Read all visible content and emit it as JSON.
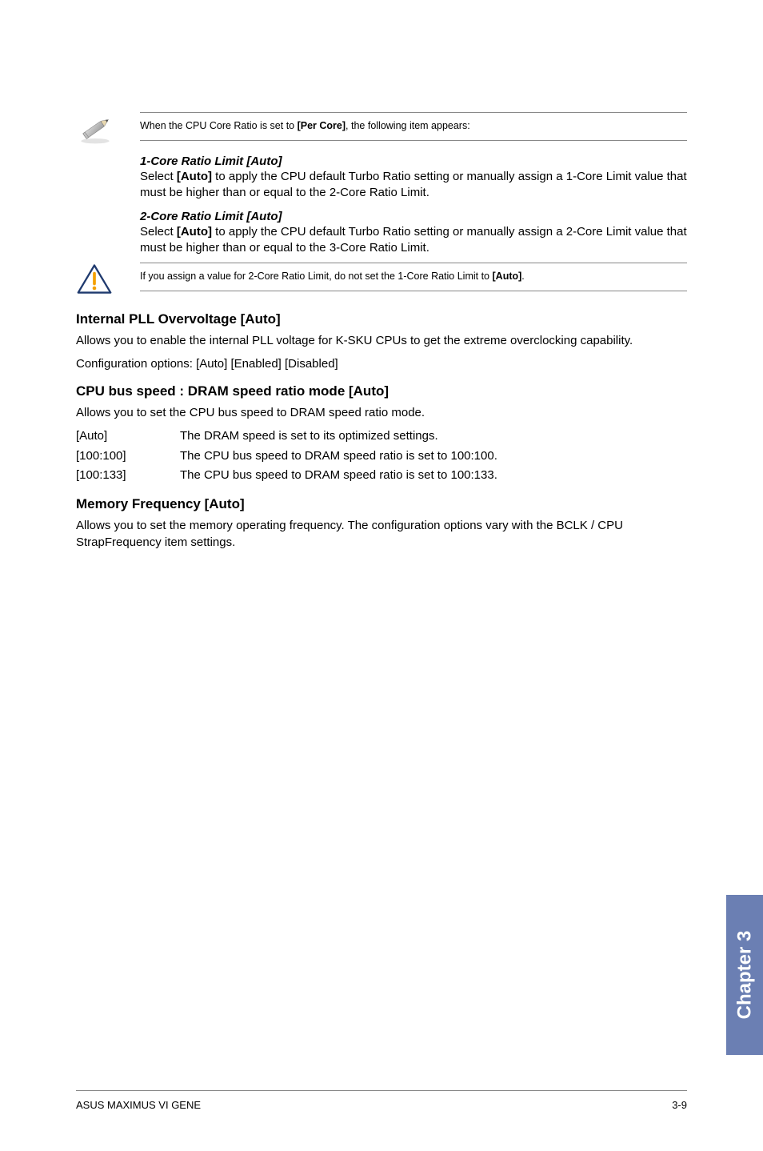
{
  "notes": {
    "pencil_note": "When the CPU Core Ratio is set to <b>[Per Core]</b>, the following item appears:",
    "warn_note": "If you assign a value for 2-Core Ratio Limit, do not set the 1-Core Ratio Limit to <b>[Auto]</b>."
  },
  "ratio_limits": [
    {
      "title": "1-Core Ratio Limit [Auto]",
      "body": "Select <b>[Auto]</b> to apply the CPU default Turbo Ratio setting or manually assign a 1-Core Limit value that must be higher than or equal to the 2-Core Ratio Limit."
    },
    {
      "title": "2-Core Ratio Limit [Auto]",
      "body": "Select <b>[Auto]</b> to apply the CPU default Turbo Ratio setting or manually assign a 2-Core Limit value that must be higher than or equal to the 3-Core Ratio Limit."
    }
  ],
  "sections": {
    "internal_pll": {
      "heading": "Internal PLL Overvoltage [Auto]",
      "body1": "Allows you to enable the internal PLL voltage for K-SKU CPUs to get the extreme overclocking capability.",
      "body2": "Configuration options: [Auto] [Enabled] [Disabled]"
    },
    "cpu_bus": {
      "heading": "CPU bus speed : DRAM speed ratio mode [Auto]",
      "body": "Allows you to set the CPU bus speed to DRAM speed ratio mode.",
      "options": [
        {
          "key": "[Auto]",
          "val": "The DRAM speed is set to its optimized settings."
        },
        {
          "key": "[100:100]",
          "val": "The CPU bus speed to DRAM speed ratio is set to 100:100."
        },
        {
          "key": "[100:133]",
          "val": "The CPU bus speed to DRAM speed ratio is set to 100:133."
        }
      ]
    },
    "memory_freq": {
      "heading": "Memory Frequency [Auto]",
      "body": "Allows you to set the memory operating frequency. The configuration options vary with the BCLK / CPU StrapFrequency item settings."
    }
  },
  "chapter_tab": "Chapter 3",
  "footer": {
    "left": "ASUS MAXIMUS VI GENE",
    "right": "3-9"
  },
  "colors": {
    "tab_bg": "#6b7fb3",
    "tab_text": "#ffffff",
    "rule": "#888888",
    "warn_outline": "#1f3a6e",
    "warn_dot": "#f4a000"
  }
}
